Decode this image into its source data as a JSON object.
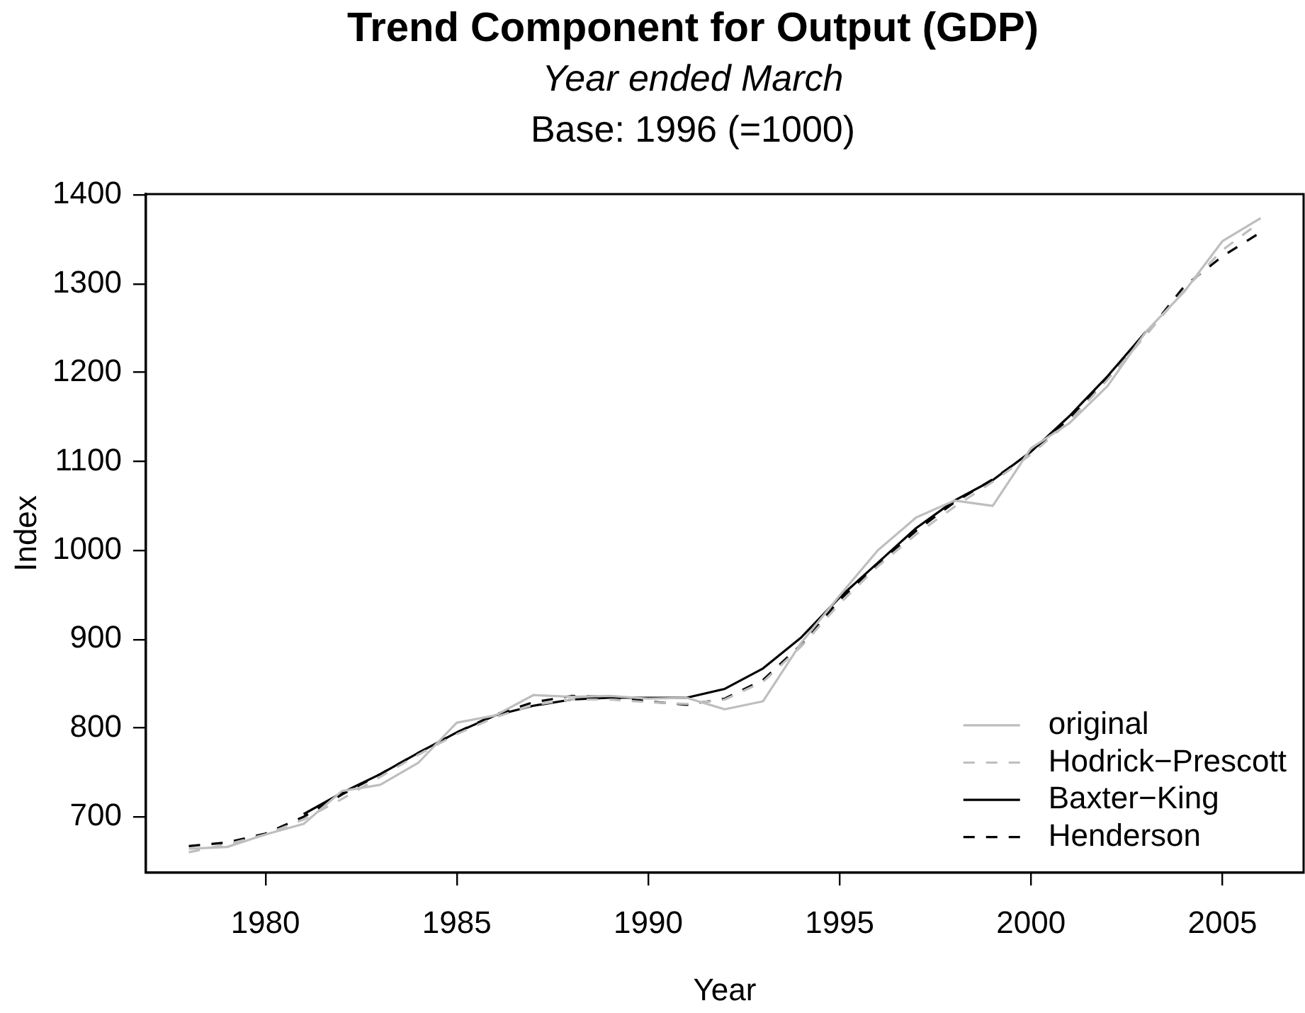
{
  "chart_data": {
    "type": "line",
    "title": "Trend Component for Output (GDP)",
    "subtitle": "Year ended March",
    "annotations": [
      "Base: 1996 (=1000)"
    ],
    "xlabel": "Year",
    "ylabel": "Index",
    "x": [
      1978,
      1979,
      1980,
      1981,
      1982,
      1983,
      1984,
      1985,
      1986,
      1987,
      1988,
      1989,
      1990,
      1991,
      1992,
      1993,
      1994,
      1995,
      1996,
      1997,
      1998,
      1999,
      2000,
      2001,
      2002,
      2003,
      2004,
      2005,
      2006
    ],
    "series": [
      {
        "name": "original",
        "color": "#bebebe",
        "line_style": "solid",
        "values": [
          664,
          666,
          680,
          692,
          729,
          736,
          761,
          806,
          814,
          837,
          835,
          836,
          833,
          834,
          821,
          830,
          896,
          949,
          1000,
          1037,
          1056,
          1050,
          1115,
          1143,
          1185,
          1246,
          1291,
          1348,
          1374
        ]
      },
      {
        "name": "Hodrick−Prescott",
        "color": "#bebebe",
        "line_style": "dashed",
        "values": [
          660,
          669,
          680,
          697,
          720,
          745,
          770,
          793,
          812,
          826,
          832,
          832,
          829,
          827,
          832,
          852,
          892,
          940,
          982,
          1018,
          1049,
          1077,
          1108,
          1145,
          1192,
          1242,
          1293,
          1338,
          1370
        ]
      },
      {
        "name": "Baxter−King",
        "color": "#000000",
        "line_style": "solid",
        "values": [
          null,
          null,
          null,
          703,
          727,
          748,
          772,
          795,
          814,
          825,
          832,
          834,
          834,
          834,
          844,
          867,
          902,
          947,
          986,
          1025,
          1056,
          1079,
          1111,
          1151,
          1196,
          1246,
          null,
          null,
          null
        ]
      },
      {
        "name": "Henderson",
        "color": "#000000",
        "line_style": "dashed",
        "values": [
          667,
          671,
          681,
          700,
          725,
          748,
          772,
          795,
          815,
          829,
          836,
          835,
          830,
          826,
          833,
          854,
          894,
          944,
          985,
          1022,
          1054,
          1080,
          1110,
          1148,
          1193,
          1243,
          1297,
          1331,
          1358
        ]
      }
    ],
    "xlim": [
      1976.88,
      2007.12
    ],
    "xticks": [
      1980,
      1985,
      1990,
      1995,
      2000,
      2005
    ],
    "ylim": [
      637,
      1401
    ],
    "yticks": [
      700,
      800,
      900,
      1000,
      1100,
      1200,
      1300,
      1400
    ],
    "legend": "bottom right",
    "marker": "none"
  }
}
